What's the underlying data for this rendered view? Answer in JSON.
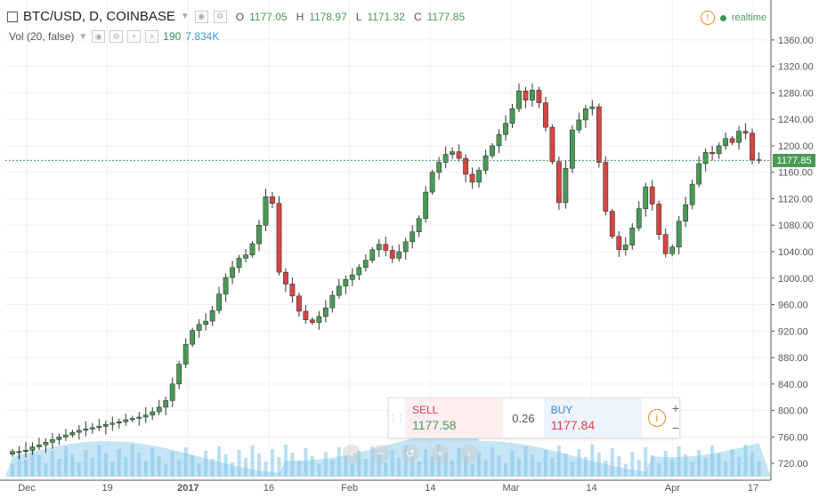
{
  "header": {
    "symbol": "BTC/USD, D, COINBASE",
    "open_label": "O",
    "open": "1177.05",
    "high_label": "H",
    "high": "1178.97",
    "low_label": "L",
    "low": "1171.32",
    "close_label": "C",
    "close": "1177.85"
  },
  "volume": {
    "label": "Vol (20, false)",
    "v1": "190",
    "v2": "7.834K"
  },
  "status": {
    "realtime": "realtime"
  },
  "trade": {
    "sell_label": "SELL",
    "sell_price": "1177.58",
    "spread": "0.26",
    "buy_label": "BUY",
    "buy_price": "1177.84",
    "info_icon": "i",
    "zoom_in": "+",
    "zoom_out": "−"
  },
  "last_price": "1177.85",
  "colors": {
    "up": "#4a9a55",
    "down": "#d64545",
    "volume": "#7fc4e8",
    "grid": "#eef0f3"
  },
  "chart_data": {
    "type": "candlestick",
    "ylim": [
      700,
      1380
    ],
    "y_ticks": [
      "1360.00",
      "1320.00",
      "1280.00",
      "1240.00",
      "1200.00",
      "1160.00",
      "1120.00",
      "1080.00",
      "1040.00",
      "1000.00",
      "960.00",
      "920.00",
      "880.00",
      "840.00",
      "800.00",
      "760.00",
      "720.00"
    ],
    "x_ticks": [
      "Dec",
      "19",
      "2017",
      "16",
      "Feb",
      "14",
      "Mar",
      "14",
      "Apr",
      "17"
    ],
    "closes": [
      738,
      738,
      740,
      745,
      748,
      752,
      756,
      760,
      763,
      767,
      770,
      772,
      774,
      776,
      779,
      781,
      783,
      786,
      788,
      790,
      793,
      798,
      805,
      815,
      840,
      870,
      900,
      921,
      930,
      935,
      951,
      976,
      1001,
      1016,
      1030,
      1035,
      1052,
      1080,
      1123,
      1113,
      1009,
      991,
      973,
      950,
      937,
      933,
      942,
      955,
      974,
      988,
      998,
      1005,
      1016,
      1027,
      1043,
      1051,
      1042,
      1030,
      1040,
      1055,
      1070,
      1090,
      1130,
      1160,
      1175,
      1187,
      1191,
      1181,
      1157,
      1145,
      1163,
      1185,
      1200,
      1217,
      1234,
      1256,
      1283,
      1269,
      1284,
      1265,
      1228,
      1176,
      1114,
      1166,
      1224,
      1239,
      1256,
      1259,
      1175,
      1101,
      1063,
      1043,
      1050,
      1076,
      1105,
      1138,
      1112,
      1066,
      1037,
      1047,
      1086,
      1111,
      1142,
      1173,
      1190,
      1188,
      1200,
      1211,
      1205,
      1222,
      1219,
      1179,
      1178
    ],
    "last": "1177.85"
  }
}
